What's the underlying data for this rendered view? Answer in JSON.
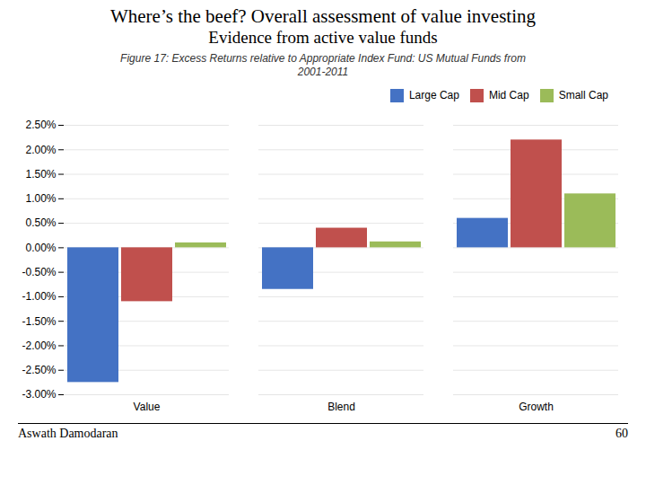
{
  "chart_data": {
    "type": "bar",
    "title": "Where’s the beef? Overall assessment of value investing",
    "subtitle": "Evidence from active value funds",
    "annotations": [
      "Figure 17: Excess Returns relative to Appropriate Index Fund: US Mutual Funds from\n2001-2011",
      "Aswath Damodaran",
      "60"
    ],
    "categories": [
      "Value",
      "Blend",
      "Growth"
    ],
    "series": [
      {
        "name": "Large Cap",
        "color": "#4472C4",
        "values": [
          -2.75,
          -0.85,
          0.6
        ]
      },
      {
        "name": "Mid Cap",
        "color": "#C0504D",
        "values": [
          -1.1,
          0.4,
          2.2
        ]
      },
      {
        "name": "Small Cap",
        "color": "#9BBB59",
        "values": [
          0.1,
          0.12,
          1.1
        ]
      }
    ],
    "ylim": [
      -3.0,
      2.5
    ],
    "yticks": [
      {
        "value": -3.0,
        "label": "-3.00%"
      },
      {
        "value": -2.5,
        "label": "-2.50%"
      },
      {
        "value": -2.0,
        "label": "-2.00%"
      },
      {
        "value": -1.5,
        "label": "-1.50%"
      },
      {
        "value": -1.0,
        "label": "-1.00%"
      },
      {
        "value": -0.5,
        "label": "-0.50%"
      },
      {
        "value": 0.0,
        "label": "0.00%"
      },
      {
        "value": 0.5,
        "label": "0.50%"
      },
      {
        "value": 1.0,
        "label": "1.00%"
      },
      {
        "value": 1.5,
        "label": "1.50%"
      },
      {
        "value": 2.0,
        "label": "2.00%"
      },
      {
        "value": 2.5,
        "label": "2.50%"
      }
    ],
    "grid": true,
    "legend": "upper right"
  }
}
